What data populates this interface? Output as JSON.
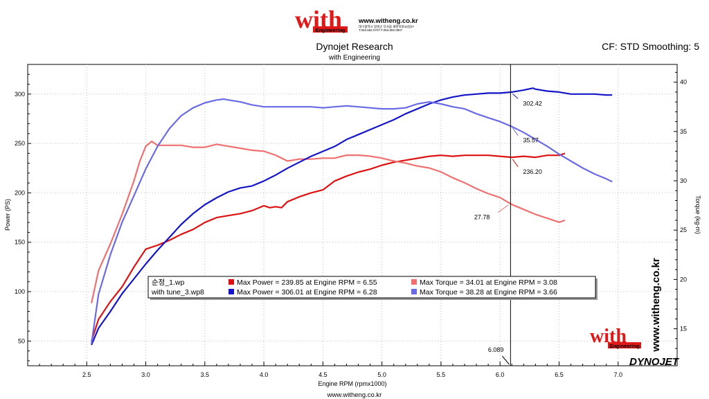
{
  "header": {
    "logo_word": "with",
    "logo_sub": "Engineering",
    "site_url": "www.witheng.co.kr",
    "address_line": "대구광역시 달성군 다사읍 세천북로10길37",
    "phone_line": "T.053.582.0707 F.053.582.0807"
  },
  "footer_url": "www.witheng.co.kr",
  "side_watermark": "www.witheng.co.kr",
  "dynojet_logo": "DYNOJET",
  "colors": {
    "run1_power": "#dd1111",
    "run1_torque": "#f07070",
    "run2_power": "#1414c8",
    "run2_torque": "#6a6ae6",
    "logo_red": "#e01818"
  },
  "chart_data": {
    "type": "line",
    "title": "Dynojet Research",
    "subtitle": "with Engineering",
    "settings_text": "CF: STD Smoothing: 5",
    "xlabel": "Engine RPM (rpmx1000)",
    "ylabel_left": "Power (PS)",
    "ylabel_right": "Torque (kg-m)",
    "xlim": [
      2.0,
      7.5
    ],
    "ylim_left": [
      25,
      330
    ],
    "ylim_right": [
      11.25,
      41.8
    ],
    "x_ticks": [
      2.5,
      3.0,
      3.5,
      4.0,
      4.5,
      5.0,
      5.5,
      6.0,
      6.5,
      7.0
    ],
    "x_tick_labels": [
      "2.5",
      "3.0",
      "3.5",
      "4.0",
      "4.5",
      "5.0",
      "5.5",
      "6.0",
      "6.5",
      "7.0"
    ],
    "y_left_ticks": [
      50,
      100,
      150,
      200,
      250,
      300
    ],
    "y_left_tick_labels": [
      "50",
      "100",
      "150",
      "200",
      "250",
      "300"
    ],
    "y_right_ticks": [
      15,
      20,
      25,
      30,
      35,
      40
    ],
    "y_right_tick_labels": [
      "15",
      "20",
      "25",
      "30",
      "35",
      "40"
    ],
    "grid": true,
    "cursor": {
      "x": 6.089,
      "label": "6.089",
      "annotations": [
        {
          "series": "run2_power",
          "text": "302.42",
          "value": 302.42
        },
        {
          "series": "run2_torque",
          "text": "35.57",
          "value": 35.57
        },
        {
          "series": "run1_power",
          "text": "236.20",
          "value": 236.2
        },
        {
          "series": "run1_torque",
          "text": "27.78",
          "value": 27.78
        }
      ]
    },
    "legend": {
      "placement": "center",
      "runs": [
        {
          "file": "순정_1.wp",
          "power_text": "Max Power = 239.85 at Engine RPM = 6.55",
          "torque_text": "Max Torque = 34.01 at Engine RPM = 3.08"
        },
        {
          "file": "with tune_3.wp8",
          "power_text": "Max Power = 306.01 at Engine RPM = 6.28",
          "torque_text": "Max Torque = 38.28 at Engine RPM = 3.66"
        }
      ]
    },
    "series": [
      {
        "id": "run1_power",
        "axis": "left",
        "x": [
          2.54,
          2.6,
          2.7,
          2.8,
          2.9,
          3.0,
          3.1,
          3.2,
          3.3,
          3.4,
          3.5,
          3.6,
          3.7,
          3.8,
          3.9,
          4.0,
          4.05,
          4.1,
          4.15,
          4.2,
          4.3,
          4.4,
          4.5,
          4.6,
          4.7,
          4.8,
          4.9,
          5.0,
          5.1,
          5.2,
          5.3,
          5.4,
          5.5,
          5.6,
          5.7,
          5.8,
          5.9,
          6.0,
          6.1,
          6.2,
          6.3,
          6.4,
          6.5,
          6.55
        ],
        "y": [
          50,
          72,
          90,
          105,
          125,
          143,
          147,
          152,
          158,
          163,
          170,
          175,
          177,
          179,
          182,
          187,
          185,
          186,
          185,
          191,
          196,
          200,
          203,
          212,
          217,
          221,
          224,
          228,
          231,
          233,
          235,
          237,
          238,
          237,
          238,
          238,
          238,
          237,
          236,
          237,
          236,
          238,
          238,
          240
        ]
      },
      {
        "id": "run1_torque",
        "axis": "right",
        "x": [
          2.54,
          2.6,
          2.7,
          2.8,
          2.9,
          2.95,
          3.0,
          3.05,
          3.1,
          3.2,
          3.3,
          3.4,
          3.5,
          3.6,
          3.7,
          3.8,
          3.9,
          4.0,
          4.1,
          4.2,
          4.3,
          4.4,
          4.5,
          4.6,
          4.7,
          4.8,
          4.9,
          5.0,
          5.1,
          5.2,
          5.3,
          5.4,
          5.5,
          5.6,
          5.7,
          5.8,
          5.9,
          6.0,
          6.1,
          6.2,
          6.3,
          6.4,
          6.5,
          6.55
        ],
        "y": [
          17.6,
          20.9,
          23.6,
          26.6,
          30.0,
          32.0,
          33.5,
          34.0,
          33.6,
          33.6,
          33.6,
          33.4,
          33.4,
          33.7,
          33.5,
          33.3,
          33.1,
          33.0,
          32.6,
          32.0,
          32.2,
          32.2,
          32.3,
          32.3,
          32.6,
          32.6,
          32.5,
          32.3,
          32.0,
          31.8,
          31.5,
          31.3,
          30.9,
          30.3,
          29.8,
          29.2,
          28.7,
          28.3,
          27.6,
          27.1,
          26.6,
          26.2,
          25.8,
          26.0
        ]
      },
      {
        "id": "run2_power",
        "axis": "left",
        "x": [
          2.54,
          2.6,
          2.7,
          2.8,
          2.9,
          3.0,
          3.1,
          3.2,
          3.3,
          3.4,
          3.5,
          3.6,
          3.7,
          3.8,
          3.9,
          4.0,
          4.1,
          4.2,
          4.3,
          4.4,
          4.5,
          4.6,
          4.7,
          4.8,
          4.9,
          5.0,
          5.1,
          5.2,
          5.3,
          5.4,
          5.5,
          5.6,
          5.7,
          5.8,
          5.9,
          6.0,
          6.1,
          6.2,
          6.28,
          6.3,
          6.4,
          6.5,
          6.6,
          6.7,
          6.8,
          6.9,
          6.95
        ],
        "y": [
          46,
          63,
          80,
          98,
          113,
          128,
          142,
          155,
          168,
          179,
          188,
          195,
          201,
          205,
          207,
          212,
          218,
          225,
          231,
          237,
          242,
          247,
          254,
          259,
          264,
          269,
          274,
          280,
          285,
          290,
          294,
          297,
          299,
          300,
          301,
          301,
          302,
          304,
          306,
          305,
          303,
          302,
          300,
          300,
          300,
          299,
          299
        ]
      },
      {
        "id": "run2_torque",
        "axis": "right",
        "x": [
          2.54,
          2.6,
          2.7,
          2.8,
          2.9,
          3.0,
          3.1,
          3.2,
          3.3,
          3.4,
          3.5,
          3.6,
          3.66,
          3.7,
          3.8,
          3.9,
          4.0,
          4.1,
          4.2,
          4.3,
          4.4,
          4.5,
          4.6,
          4.7,
          4.8,
          4.9,
          5.0,
          5.1,
          5.2,
          5.3,
          5.4,
          5.5,
          5.6,
          5.7,
          5.8,
          5.9,
          6.0,
          6.1,
          6.2,
          6.3,
          6.4,
          6.5,
          6.6,
          6.7,
          6.8,
          6.9,
          6.95
        ],
        "y": [
          13.5,
          18.5,
          22.5,
          25.8,
          28.5,
          31.2,
          33.5,
          35.3,
          36.6,
          37.4,
          37.9,
          38.2,
          38.28,
          38.2,
          38.0,
          37.7,
          37.5,
          37.5,
          37.5,
          37.5,
          37.5,
          37.4,
          37.5,
          37.6,
          37.5,
          37.4,
          37.3,
          37.3,
          37.4,
          37.8,
          38.0,
          37.8,
          37.5,
          37.3,
          36.8,
          36.4,
          36.0,
          35.5,
          34.9,
          34.2,
          33.5,
          32.7,
          32.0,
          31.3,
          30.7,
          30.2,
          29.9
        ]
      }
    ]
  }
}
